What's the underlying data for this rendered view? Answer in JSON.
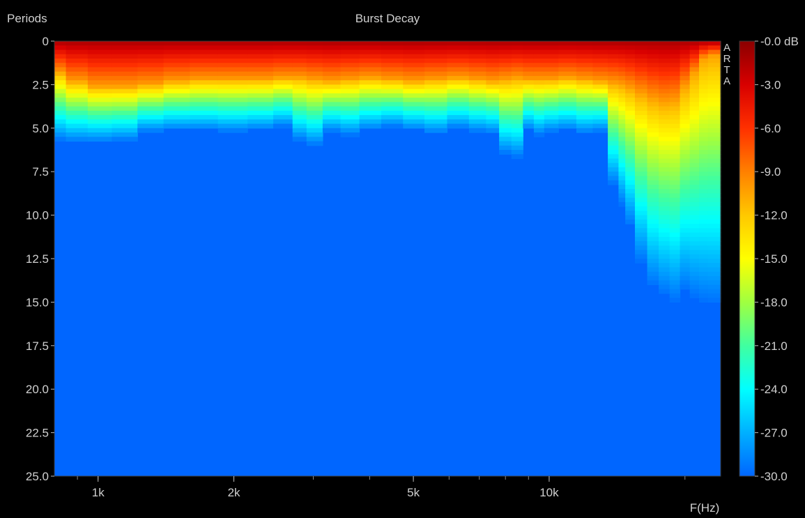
{
  "chart_data": {
    "type": "heatmap",
    "title": "Burst Decay",
    "ylabel": "Periods",
    "xlabel": "F(Hz)",
    "watermark": "ARTA",
    "x_scale": "log",
    "xlim": [
      800,
      24000
    ],
    "ylim": [
      0,
      25
    ],
    "x_ticks": [
      {
        "label": "1k",
        "value": 1000
      },
      {
        "label": "2k",
        "value": 2000
      },
      {
        "label": "5k",
        "value": 5000
      },
      {
        "label": "10k",
        "value": 10000
      }
    ],
    "y_ticks": [
      "0",
      "2.5",
      "5.0",
      "7.5",
      "10.0",
      "12.5",
      "15.0",
      "17.5",
      "20.0",
      "22.5",
      "25.0"
    ],
    "colorbar": {
      "unit": "dB",
      "range": [
        -30,
        0
      ],
      "labels": [
        "-0.0",
        "-3.0",
        "-6.0",
        "-9.0",
        "-12.0",
        "-15.0",
        "-18.0",
        "-21.0",
        "-24.0",
        "-27.0",
        "-30.0"
      ],
      "colors": [
        "#8b0000",
        "#d80000",
        "#ff3000",
        "#ff8000",
        "#ffc800",
        "#ffff00",
        "#a0ff40",
        "#40ffa0",
        "#00ffff",
        "#00b0ff",
        "#0066ff"
      ]
    },
    "series": {
      "frequencies_hz": [
        800,
        900,
        1000,
        1150,
        1300,
        1500,
        1700,
        2000,
        2300,
        2600,
        2800,
        3000,
        3300,
        3600,
        4000,
        4500,
        5000,
        5600,
        6300,
        7000,
        7500,
        8000,
        8500,
        9000,
        9500,
        10000,
        11000,
        12000,
        13000,
        14000,
        14500,
        15000,
        16000,
        17000,
        18000,
        19000,
        20000,
        21000,
        22000,
        23000
      ],
      "decay_periods_to_floor": [
        5.8,
        5.9,
        5.9,
        5.8,
        5.3,
        5.2,
        5.2,
        5.3,
        5.2,
        5.0,
        5.8,
        6.1,
        5.3,
        5.5,
        5.2,
        5.0,
        5.2,
        5.4,
        5.1,
        5.3,
        5.4,
        6.6,
        6.8,
        5.2,
        5.5,
        5.3,
        5.2,
        5.4,
        5.3,
        8.4,
        9.6,
        10.8,
        12.9,
        14.3,
        14.8,
        15.2,
        14.6,
        15.0,
        15.3,
        15.4
      ],
      "hot_periods": [
        1.8,
        2.3,
        2.6,
        2.6,
        2.5,
        2.3,
        2.2,
        2.2,
        2.2,
        2.1,
        2.1,
        2.2,
        2.3,
        2.2,
        2.1,
        2.2,
        2.3,
        2.2,
        2.1,
        2.2,
        2.3,
        2.2,
        2.1,
        2.2,
        2.2,
        2.2,
        2.1,
        2.2,
        2.3,
        2.4,
        2.5,
        2.7,
        3.0,
        3.3,
        3.5,
        3.4,
        2.6,
        1.8,
        1.0,
        0.8
      ]
    }
  }
}
